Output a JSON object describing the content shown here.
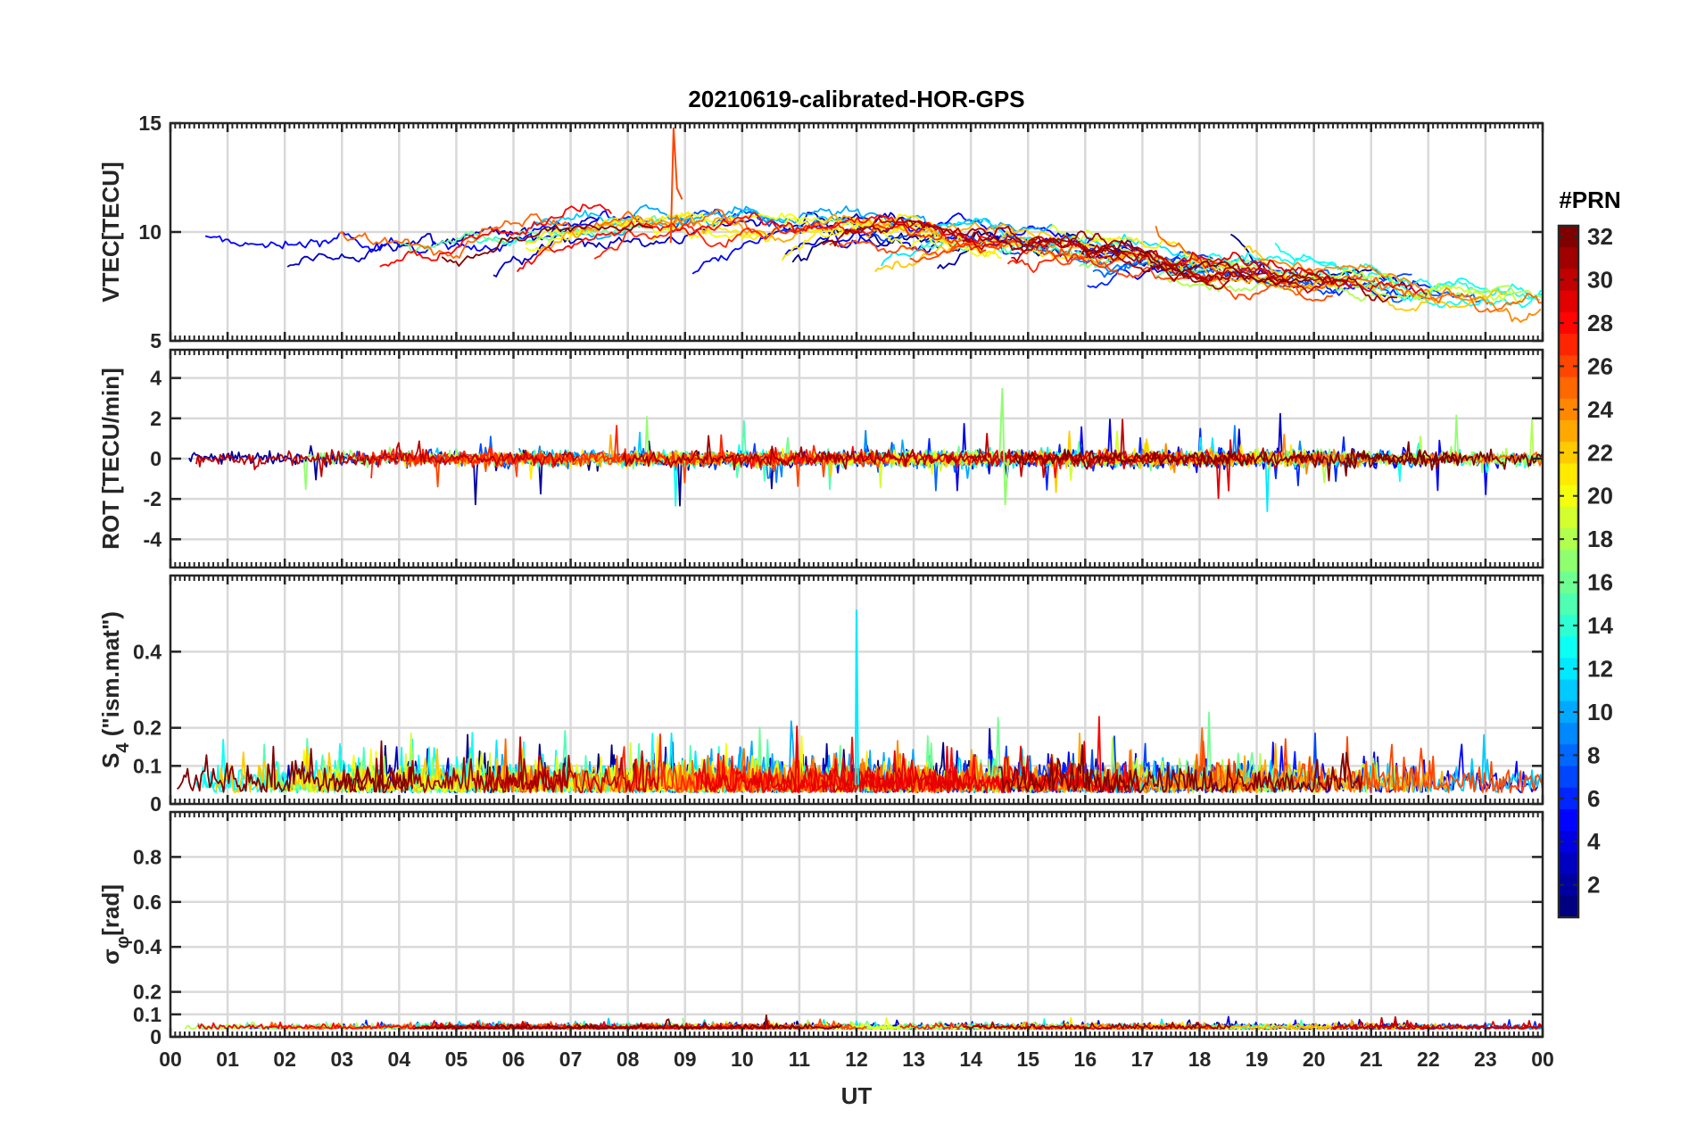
{
  "chart_data": {
    "type": "line",
    "title": "20210619-calibrated-HOR-GPS",
    "xlabel": "UT",
    "x_range_hours": [
      0,
      24
    ],
    "x_tick_labels": [
      "00",
      "01",
      "02",
      "03",
      "04",
      "05",
      "06",
      "07",
      "08",
      "09",
      "10",
      "11",
      "12",
      "13",
      "14",
      "15",
      "16",
      "17",
      "18",
      "19",
      "20",
      "21",
      "22",
      "23",
      "00"
    ],
    "grid": true,
    "panels": [
      {
        "name": "vtec",
        "ylabel": "VTEC[TECU]",
        "ylim": [
          5,
          15
        ],
        "y_ticks": [
          5,
          10,
          15
        ],
        "description_range": "values mostly between 6 and 12 TECU, peak ~14.8 near 08:50 UT"
      },
      {
        "name": "rot",
        "ylabel": "ROT [TECU/min]",
        "ylim": [
          -5.4,
          5.4
        ],
        "y_ticks": [
          -4,
          -2,
          0,
          2,
          4
        ],
        "description_range": "values mostly within ±1, spikes to ~3.5 near 14:35 UT"
      },
      {
        "name": "s4",
        "ylabel_main": "S",
        "ylabel_sub": "4",
        "ylabel_rest": " (\"ism.mat\")",
        "ylim": [
          0,
          0.6
        ],
        "y_ticks": [
          0,
          0.1,
          0.2,
          0.4
        ],
        "description_range": "mostly below 0.15, spike ~0.51 at 12:00 UT"
      },
      {
        "name": "sigma_phi",
        "ylabel_main": "σ",
        "ylabel_sub": "φ",
        "ylabel_rest": "[rad]",
        "ylim": [
          0,
          1
        ],
        "y_ticks": [
          0,
          0.1,
          0.2,
          0.4,
          0.6,
          0.8
        ],
        "description_range": "mostly between 0.02 and 0.06 rad"
      }
    ],
    "colorbar": {
      "label": "#PRN",
      "range": [
        1,
        32
      ],
      "ticks": [
        2,
        4,
        6,
        8,
        10,
        12,
        14,
        16,
        18,
        20,
        22,
        24,
        26,
        28,
        30,
        32
      ],
      "colormap": "jet"
    },
    "series_count": 32
  }
}
